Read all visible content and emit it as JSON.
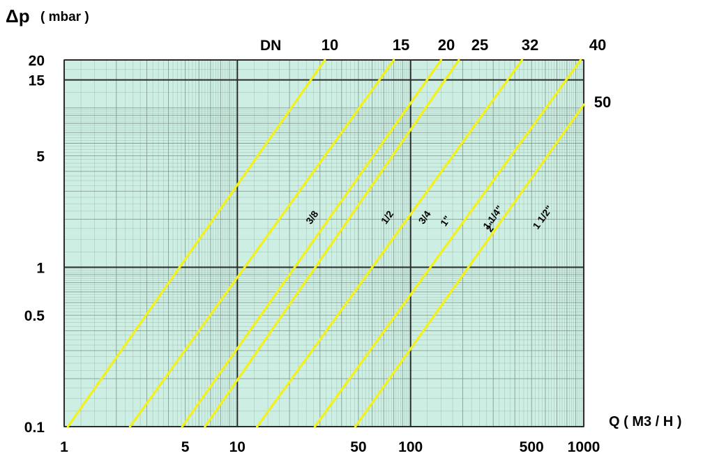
{
  "chart_data": {
    "type": "line",
    "y_axis_label_symbol": "Δp",
    "y_axis_label_unit": "( mbar )",
    "x_axis_label": "Q ( M3 / H )",
    "dn_label": "DN",
    "x_scale": "log",
    "y_scale": "log",
    "xlim": [
      1,
      1000
    ],
    "ylim": [
      0.1,
      20
    ],
    "x_ticks": [
      {
        "value": 1,
        "label": "1"
      },
      {
        "value": 5,
        "label": "5"
      },
      {
        "value": 10,
        "label": "10"
      },
      {
        "value": 50,
        "label": "50"
      },
      {
        "value": 100,
        "label": "100"
      },
      {
        "value": 500,
        "label": "500"
      },
      {
        "value": 1000,
        "label": "1000"
      }
    ],
    "y_ticks": [
      {
        "value": 0.1,
        "label": "0.1"
      },
      {
        "value": 0.5,
        "label": "0.5"
      },
      {
        "value": 1,
        "label": "1"
      },
      {
        "value": 5,
        "label": "5"
      },
      {
        "value": 15,
        "label": "15"
      },
      {
        "value": 20,
        "label": "20"
      }
    ],
    "grid": true,
    "background_color": "#cdeee2",
    "grid_color_major": "#2a2a2a",
    "grid_color_minor": "#7b8e86",
    "line_color": "#f2f21a",
    "series": [
      {
        "name": "3/8",
        "dn": "10",
        "points": [
          [
            1.05,
            0.1
          ],
          [
            32,
            20
          ]
        ],
        "label_at": [
          28,
          2.0
        ]
      },
      {
        "name": "1/2",
        "dn": "15",
        "points": [
          [
            2.4,
            0.1
          ],
          [
            80,
            20
          ]
        ],
        "label_at": [
          76,
          2.0
        ]
      },
      {
        "name": "3/4",
        "dn": "20",
        "points": [
          [
            4.8,
            0.1
          ],
          [
            150,
            20
          ]
        ],
        "label_at": [
          125,
          2.0
        ]
      },
      {
        "name": "1\"",
        "dn": "25",
        "points": [
          [
            6.5,
            0.1
          ],
          [
            190,
            20
          ]
        ],
        "label_at": [
          165,
          1.9
        ]
      },
      {
        "name": "1 1/4\"",
        "dn": "32",
        "points": [
          [
            13,
            0.1
          ],
          [
            440,
            20
          ]
        ],
        "label_at": [
          310,
          2.0
        ]
      },
      {
        "name": "1 1/2\"",
        "dn": "40",
        "points": [
          [
            28,
            0.1
          ],
          [
            960,
            20
          ]
        ],
        "label_at": [
          600,
          2.0
        ]
      },
      {
        "name": "2\"",
        "dn": "50",
        "points": [
          [
            48,
            0.1
          ],
          [
            1000,
            10.5
          ]
        ],
        "label_at": [
          1150,
          1.8
        ]
      }
    ]
  }
}
